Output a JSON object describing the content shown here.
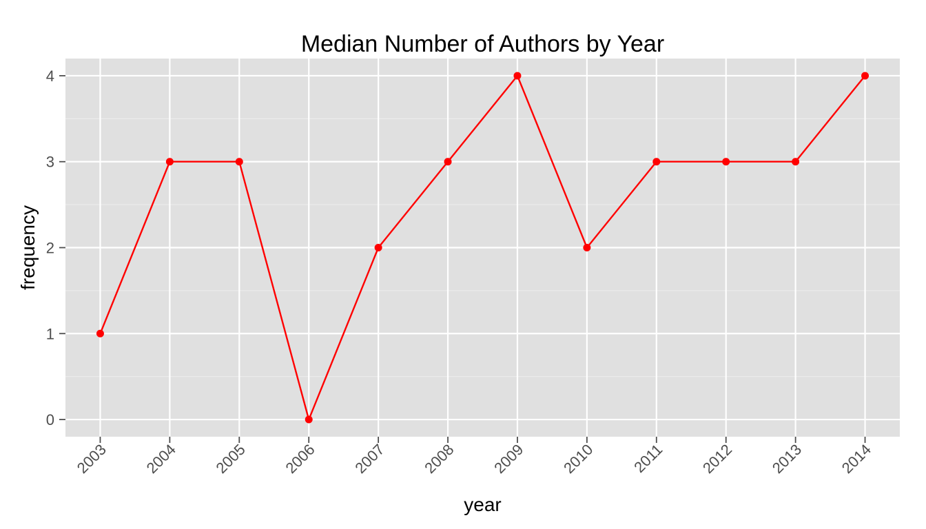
{
  "chart_data": {
    "type": "line",
    "title": "Median Number of Authors by Year",
    "xlabel": "year",
    "ylabel": "frequency",
    "categories": [
      "2003",
      "2004",
      "2005",
      "2006",
      "2007",
      "2008",
      "2009",
      "2010",
      "2011",
      "2012",
      "2013",
      "2014"
    ],
    "series": [
      {
        "values": [
          1,
          3,
          3,
          0,
          2,
          3,
          4,
          2,
          3,
          3,
          3,
          4
        ],
        "color": "#ff0000",
        "markers": true
      }
    ],
    "yticks": [
      0,
      1,
      2,
      3,
      4
    ],
    "ylim": [
      -0.2,
      4.2
    ],
    "grid": true,
    "legend": "none",
    "colors": {
      "panel_background": "#e0e0e0",
      "grid_major": "#ffffff",
      "grid_minor": "#ebebeb",
      "tick_text": "#4d4d4d",
      "tick_mark": "#4d4d4d"
    }
  }
}
